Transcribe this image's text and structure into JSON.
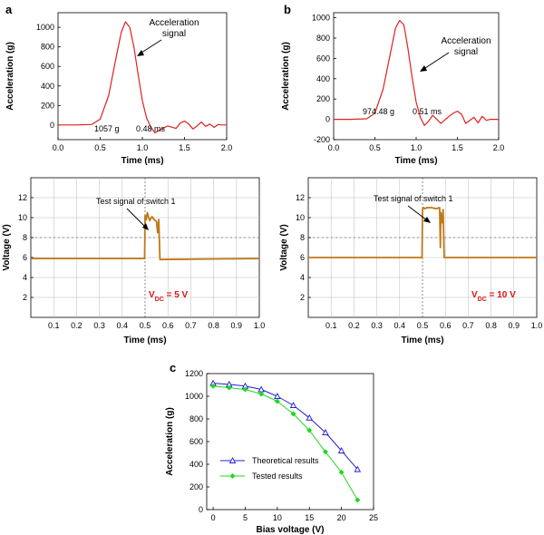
{
  "colors": {
    "accel": "#e02020",
    "scope_trace": "#c07818",
    "theory": "#2020d0",
    "tested": "#20d820",
    "vdc": "#e01010"
  },
  "chart_data": [
    {
      "id": "a",
      "panel_label": "a",
      "type": "line",
      "xlabel": "Time (ms)",
      "ylabel": "Acceleration (g)",
      "xlim": [
        0,
        2.0
      ],
      "ylim": [
        -150,
        1150
      ],
      "xticks": [
        "0.0",
        "0.5",
        "1.0",
        "1.5",
        "2.0"
      ],
      "yticks": [
        "0",
        "200",
        "400",
        "600",
        "800",
        "1000"
      ],
      "series": [
        {
          "name": "Acceleration signal",
          "x": [
            0,
            0.2,
            0.4,
            0.5,
            0.6,
            0.7,
            0.75,
            0.8,
            0.85,
            0.9,
            0.95,
            1.0,
            1.05,
            1.1,
            1.15,
            1.2,
            1.3,
            1.4,
            1.45,
            1.5,
            1.55,
            1.6,
            1.65,
            1.7,
            1.75,
            1.8,
            1.85,
            1.9,
            1.95,
            2.0
          ],
          "y": [
            0,
            0,
            5,
            60,
            300,
            740,
            950,
            1057,
            1000,
            800,
            520,
            250,
            70,
            -20,
            -80,
            -55,
            -10,
            -35,
            20,
            40,
            10,
            -40,
            -10,
            30,
            -15,
            10,
            -25,
            5,
            0,
            0
          ]
        }
      ],
      "annotations": {
        "callout": "Acceleration\nsignal",
        "peak_value": "1057 g",
        "pulse_width": "0.48 ms"
      }
    },
    {
      "id": "b",
      "panel_label": "b",
      "type": "line",
      "xlabel": "Time (ms)",
      "ylabel": "Acceleration (g)",
      "xlim": [
        0,
        2.0
      ],
      "ylim": [
        -200,
        1050
      ],
      "xticks": [
        "0.0",
        "0.5",
        "1.0",
        "1.5",
        "2.0"
      ],
      "yticks": [
        "-200",
        "0",
        "200",
        "400",
        "600",
        "800",
        "1000"
      ],
      "series": [
        {
          "name": "Acceleration signal",
          "x": [
            0,
            0.2,
            0.4,
            0.5,
            0.6,
            0.7,
            0.75,
            0.8,
            0.85,
            0.9,
            0.95,
            1.0,
            1.05,
            1.1,
            1.15,
            1.2,
            1.3,
            1.4,
            1.45,
            1.5,
            1.55,
            1.6,
            1.7,
            1.75,
            1.8,
            1.85,
            1.9,
            1.95,
            2.0
          ],
          "y": [
            0,
            0,
            5,
            60,
            300,
            700,
            900,
            974,
            930,
            700,
            420,
            170,
            20,
            -60,
            -20,
            40,
            -40,
            30,
            60,
            80,
            50,
            -40,
            20,
            -35,
            30,
            -10,
            0,
            0,
            0
          ]
        }
      ],
      "annotations": {
        "callout": "Acceleration\nsignal",
        "peak_value": "974.48 g",
        "pulse_width": "0.51 ms"
      }
    },
    {
      "id": "scope1",
      "type": "line",
      "xlabel": "Time (ms)",
      "ylabel": "Voltage (V)",
      "xlim": [
        0,
        1.0
      ],
      "ylim": [
        0,
        14
      ],
      "xticks": [
        "0.1",
        "0.2",
        "0.3",
        "0.4",
        "0.5",
        "0.6",
        "0.7",
        "0.8",
        "0.9",
        "1.0"
      ],
      "yticks": [
        "2",
        "4",
        "6",
        "8",
        "10",
        "12"
      ],
      "series": [
        {
          "name": "Test signal of switch 1",
          "x": [
            0,
            0.498,
            0.5,
            0.505,
            0.51,
            0.52,
            0.53,
            0.54,
            0.55,
            0.555,
            0.56,
            0.565,
            1.0
          ],
          "y": [
            5.9,
            5.9,
            10.2,
            9.8,
            10.5,
            9.7,
            10.1,
            9.8,
            9.6,
            8.5,
            9.8,
            5.8,
            5.9
          ]
        }
      ],
      "annotations": {
        "callout": "Test signal of switch 1",
        "vdc_prefix": "V",
        "vdc_sub": "DC",
        "vdc_value": " = 5 V",
        "threshold_v": 8
      }
    },
    {
      "id": "scope2",
      "type": "line",
      "xlabel": "Time (ms)",
      "ylabel": "Voltage (V)",
      "xlim": [
        0,
        1.0
      ],
      "ylim": [
        0,
        14
      ],
      "xticks": [
        "0.1",
        "0.2",
        "0.3",
        "0.4",
        "0.5",
        "0.6",
        "0.7",
        "0.8",
        "0.9",
        "1.0"
      ],
      "yticks": [
        "2",
        "4",
        "6",
        "8",
        "10",
        "12"
      ],
      "series": [
        {
          "name": "Test signal of switch 1",
          "x": [
            0,
            0.498,
            0.5,
            0.505,
            0.51,
            0.52,
            0.54,
            0.56,
            0.575,
            0.578,
            0.58,
            0.585,
            0.59,
            0.595,
            1.0
          ],
          "y": [
            6.0,
            6.0,
            10.8,
            11.0,
            10.9,
            11.0,
            11.0,
            10.9,
            11.0,
            7.0,
            10.5,
            9.5,
            10.8,
            6.0,
            6.0
          ]
        }
      ],
      "annotations": {
        "callout": "Test signal of switch 1",
        "vdc_prefix": "V",
        "vdc_sub": "DC",
        "vdc_value": " = 10 V",
        "threshold_v": 8
      }
    },
    {
      "id": "c",
      "panel_label": "c",
      "type": "line",
      "xlabel": "Bias voltage (V)",
      "ylabel": "Acceleration (g)",
      "xlim": [
        -1,
        25
      ],
      "ylim": [
        0,
        1200
      ],
      "xticks": [
        "0",
        "5",
        "10",
        "15",
        "20",
        "25"
      ],
      "yticks": [
        "0",
        "200",
        "400",
        "600",
        "800",
        "1000",
        "1200"
      ],
      "series": [
        {
          "name": "Theoretical results",
          "marker": "open-triangle",
          "x": [
            0,
            2.5,
            5,
            7.5,
            10,
            12.5,
            15,
            17.5,
            20,
            22.5
          ],
          "y": [
            1115,
            1105,
            1090,
            1060,
            1000,
            920,
            810,
            680,
            520,
            355
          ]
        },
        {
          "name": "Tested results",
          "marker": "filled-diamond",
          "x": [
            0,
            2.5,
            5,
            7.5,
            10,
            12.5,
            15,
            17.5,
            20,
            22.5
          ],
          "y": [
            1090,
            1075,
            1060,
            1020,
            955,
            845,
            700,
            510,
            330,
            85
          ]
        }
      ],
      "legend": "lower-left"
    }
  ]
}
